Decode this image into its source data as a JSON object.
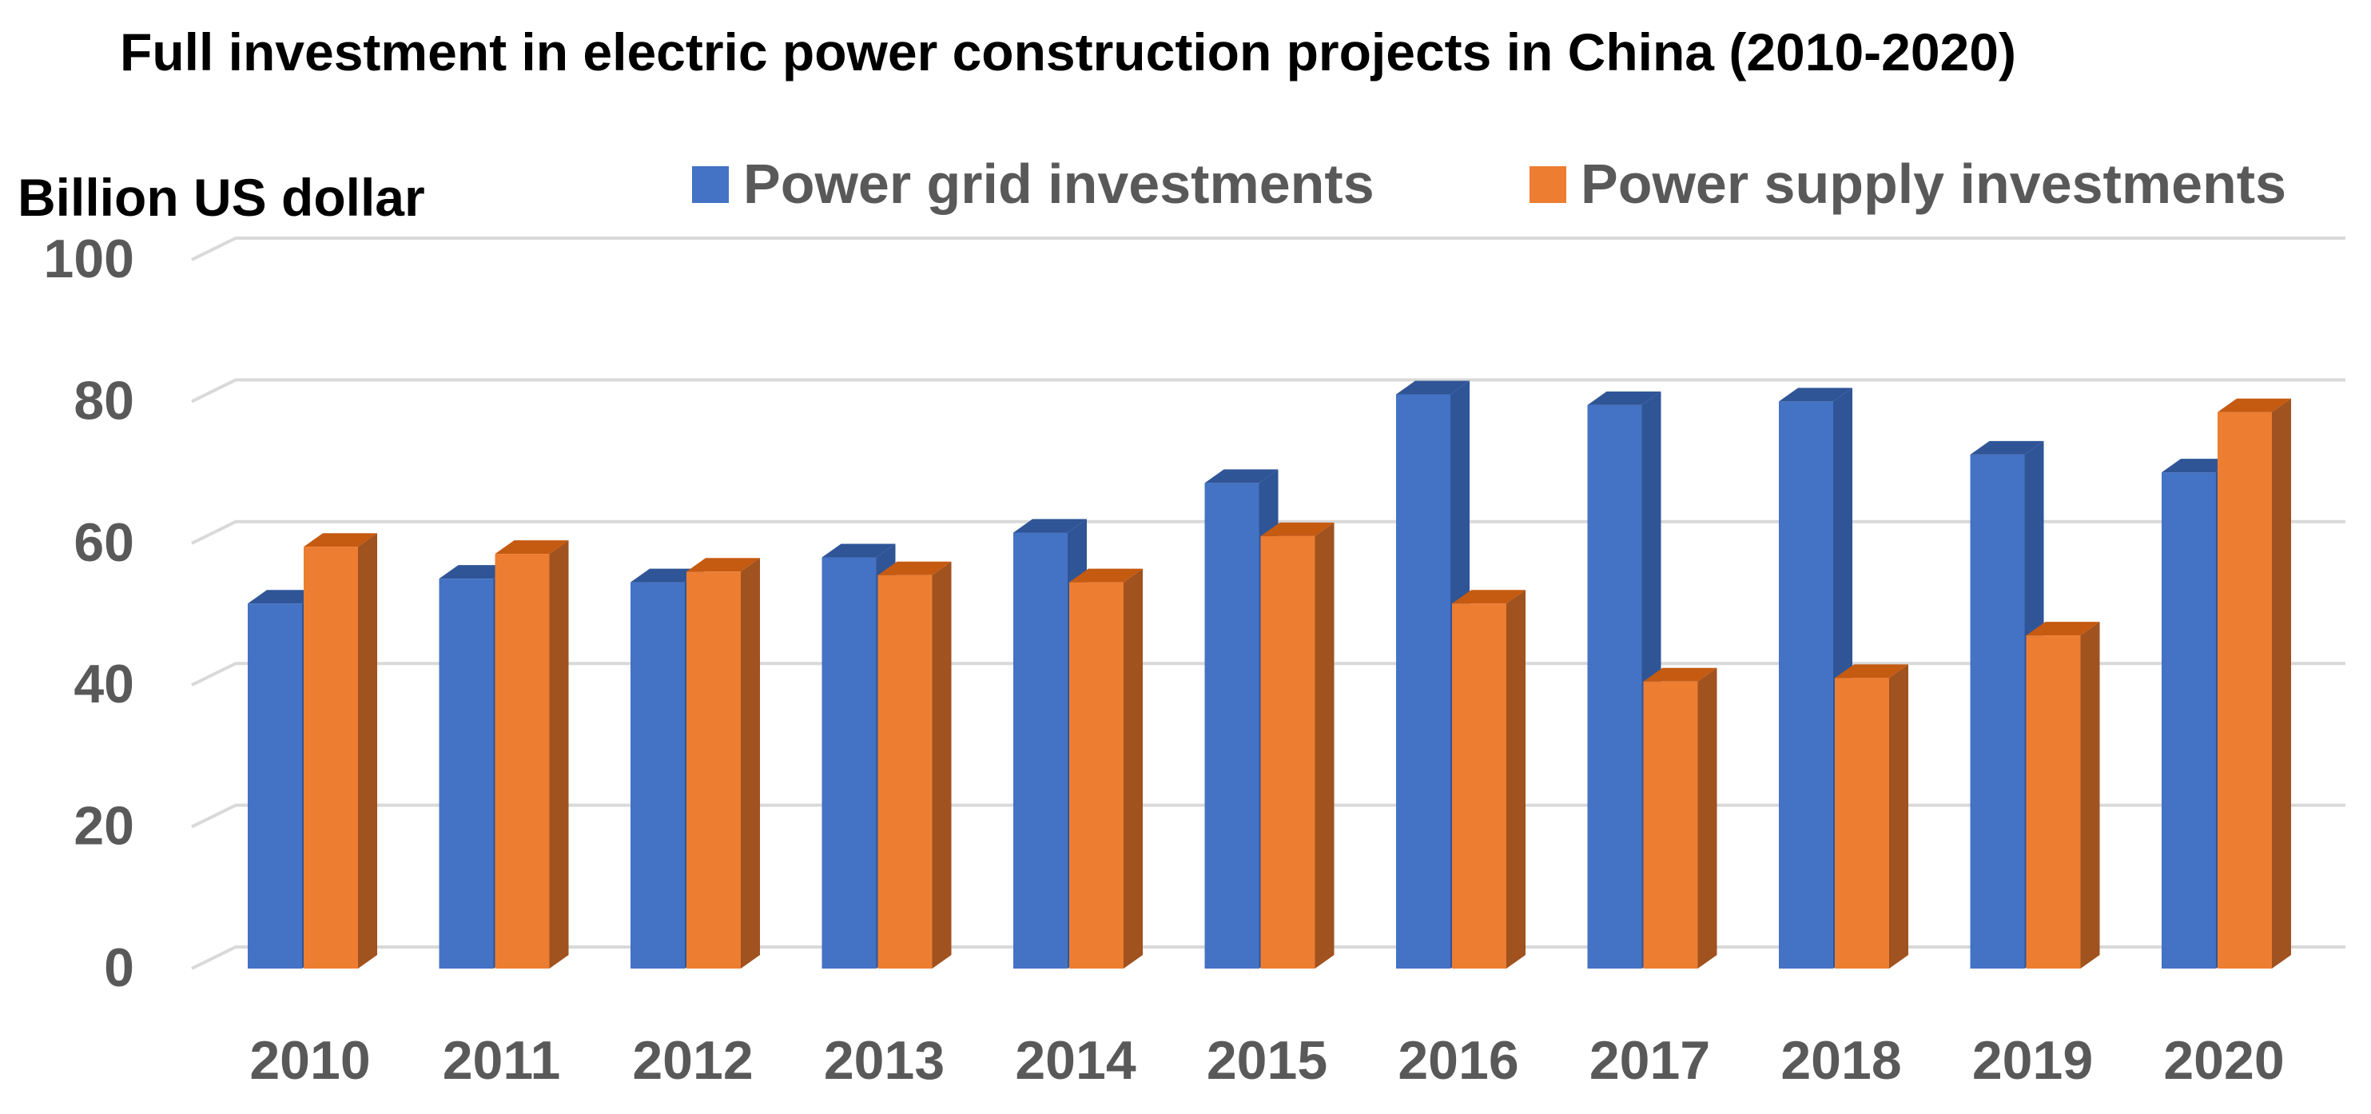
{
  "chart_data": {
    "type": "bar",
    "title": "Full investment in electric power construction projects in China (2010-2020)",
    "ylabel": "Billion US dollar",
    "xlabel": "",
    "categories": [
      "2010",
      "2011",
      "2012",
      "2013",
      "2014",
      "2015",
      "2016",
      "2017",
      "2018",
      "2019",
      "2020"
    ],
    "series": [
      {
        "name": "Power grid investments",
        "color": "#4472C4",
        "side_color": "#2F5597",
        "top_color": "#2F5597",
        "values": [
          51.5,
          55,
          54.5,
          58,
          61.5,
          68.5,
          81,
          79.5,
          80,
          72.5,
          70
        ]
      },
      {
        "name": "Power supply investments",
        "color": "#ED7D31",
        "side_color": "#A0521F",
        "top_color": "#C55A11",
        "values": [
          59.5,
          58.5,
          56,
          55.5,
          54.5,
          61,
          51.5,
          40.5,
          41,
          47,
          78.5
        ]
      }
    ],
    "ylim": [
      0,
      100
    ],
    "yticks": [
      0,
      20,
      40,
      60,
      80,
      100
    ],
    "grid": true,
    "legend_position": "top"
  }
}
